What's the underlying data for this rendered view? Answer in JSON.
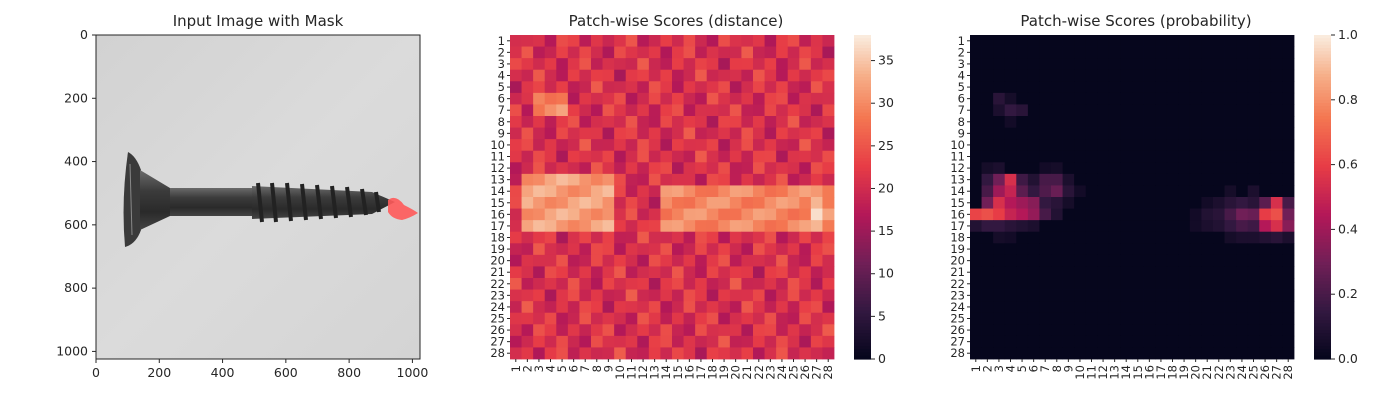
{
  "chart_data": [
    {
      "type": "image",
      "title": "Input Image with Mask",
      "xlim": [
        0,
        1024
      ],
      "ylim": [
        1024,
        0
      ],
      "xticks": [
        0,
        200,
        400,
        600,
        800,
        1000
      ],
      "yticks": [
        0,
        200,
        400,
        600,
        800,
        1000
      ],
      "image_description": "Grayscale photo of a screw lying horizontally on a light gray background, head on the left, tip on the right",
      "mask": {
        "color": "#ff5a5a",
        "center": [
          945,
          565
        ],
        "extent_x": [
          905,
          985
        ],
        "extent_y": [
          535,
          595
        ]
      }
    },
    {
      "type": "heatmap",
      "title": "Patch-wise Scores (distance)",
      "rows": 28,
      "cols": 28,
      "tick_labels": [
        "1",
        "2",
        "3",
        "4",
        "5",
        "6",
        "7",
        "8",
        "9",
        "10",
        "11",
        "12",
        "13",
        "14",
        "15",
        "16",
        "17",
        "18",
        "19",
        "20",
        "21",
        "22",
        "23",
        "24",
        "25",
        "26",
        "27",
        "28"
      ],
      "colorbar": {
        "min": 0,
        "max": 38,
        "ticks": [
          0,
          5,
          10,
          15,
          20,
          25,
          30,
          35
        ]
      },
      "colormap": "rocket",
      "value_model": {
        "background": 21,
        "bands": [
          {
            "rows": [
              13,
              17
            ],
            "cols": [
              2,
              9
            ],
            "value": 32
          },
          {
            "rows": [
              14,
              17
            ],
            "cols": [
              14,
              28
            ],
            "value": 30
          },
          {
            "rows": [
              6,
              7
            ],
            "cols": [
              3,
              5
            ],
            "value": 30
          }
        ],
        "peak": {
          "row": 16,
          "col": 27,
          "value": 37
        }
      }
    },
    {
      "type": "heatmap",
      "title": "Patch-wise Scores (probability)",
      "rows": 28,
      "cols": 28,
      "tick_labels": [
        "1",
        "2",
        "3",
        "4",
        "5",
        "6",
        "7",
        "8",
        "9",
        "10",
        "11",
        "12",
        "13",
        "14",
        "15",
        "16",
        "17",
        "18",
        "19",
        "20",
        "21",
        "22",
        "23",
        "24",
        "25",
        "26",
        "27",
        "28"
      ],
      "colorbar": {
        "min": 0.0,
        "max": 1.0,
        "ticks": [
          "0.0",
          "0.2",
          "0.4",
          "0.6",
          "0.8",
          "1.0"
        ]
      },
      "colormap": "rocket",
      "cells": [
        [
          6,
          3,
          0.12
        ],
        [
          6,
          4,
          0.06
        ],
        [
          7,
          3,
          0.08
        ],
        [
          7,
          4,
          0.15
        ],
        [
          7,
          5,
          0.12
        ],
        [
          8,
          4,
          0.05
        ],
        [
          12,
          2,
          0.06
        ],
        [
          12,
          3,
          0.08
        ],
        [
          12,
          7,
          0.05
        ],
        [
          12,
          8,
          0.06
        ],
        [
          13,
          2,
          0.15
        ],
        [
          13,
          3,
          0.3
        ],
        [
          13,
          4,
          0.55
        ],
        [
          13,
          5,
          0.18
        ],
        [
          13,
          6,
          0.1
        ],
        [
          13,
          7,
          0.2
        ],
        [
          13,
          8,
          0.2
        ],
        [
          13,
          9,
          0.08
        ],
        [
          14,
          2,
          0.2
        ],
        [
          14,
          3,
          0.4
        ],
        [
          14,
          4,
          0.5
        ],
        [
          14,
          5,
          0.25
        ],
        [
          14,
          6,
          0.15
        ],
        [
          14,
          7,
          0.22
        ],
        [
          14,
          8,
          0.28
        ],
        [
          14,
          9,
          0.12
        ],
        [
          14,
          10,
          0.05
        ],
        [
          15,
          2,
          0.3
        ],
        [
          15,
          3,
          0.55
        ],
        [
          15,
          4,
          0.45
        ],
        [
          15,
          5,
          0.4
        ],
        [
          15,
          6,
          0.35
        ],
        [
          15,
          7,
          0.15
        ],
        [
          15,
          8,
          0.12
        ],
        [
          15,
          9,
          0.06
        ],
        [
          16,
          1,
          0.62
        ],
        [
          16,
          2,
          0.65
        ],
        [
          16,
          3,
          0.6
        ],
        [
          16,
          4,
          0.5
        ],
        [
          16,
          5,
          0.45
        ],
        [
          16,
          6,
          0.38
        ],
        [
          16,
          7,
          0.2
        ],
        [
          16,
          8,
          0.1
        ],
        [
          17,
          1,
          0.1
        ],
        [
          17,
          2,
          0.15
        ],
        [
          17,
          3,
          0.15
        ],
        [
          17,
          4,
          0.12
        ],
        [
          17,
          5,
          0.1
        ],
        [
          17,
          6,
          0.08
        ],
        [
          18,
          3,
          0.06
        ],
        [
          18,
          4,
          0.05
        ],
        [
          14,
          23,
          0.06
        ],
        [
          14,
          25,
          0.08
        ],
        [
          15,
          21,
          0.05
        ],
        [
          15,
          22,
          0.08
        ],
        [
          15,
          23,
          0.12
        ],
        [
          15,
          24,
          0.15
        ],
        [
          15,
          25,
          0.12
        ],
        [
          15,
          26,
          0.25
        ],
        [
          15,
          27,
          0.55
        ],
        [
          15,
          28,
          0.2
        ],
        [
          16,
          20,
          0.05
        ],
        [
          16,
          21,
          0.1
        ],
        [
          16,
          22,
          0.12
        ],
        [
          16,
          23,
          0.2
        ],
        [
          16,
          24,
          0.3
        ],
        [
          16,
          25,
          0.28
        ],
        [
          16,
          26,
          0.6
        ],
        [
          16,
          27,
          0.65
        ],
        [
          16,
          28,
          0.3
        ],
        [
          17,
          20,
          0.05
        ],
        [
          17,
          21,
          0.08
        ],
        [
          17,
          22,
          0.1
        ],
        [
          17,
          23,
          0.15
        ],
        [
          17,
          24,
          0.2
        ],
        [
          17,
          25,
          0.18
        ],
        [
          17,
          26,
          0.45
        ],
        [
          17,
          27,
          0.55
        ],
        [
          17,
          28,
          0.35
        ],
        [
          18,
          23,
          0.06
        ],
        [
          18,
          24,
          0.08
        ],
        [
          18,
          25,
          0.08
        ],
        [
          18,
          26,
          0.1
        ],
        [
          18,
          27,
          0.12
        ],
        [
          18,
          28,
          0.08
        ]
      ]
    }
  ]
}
